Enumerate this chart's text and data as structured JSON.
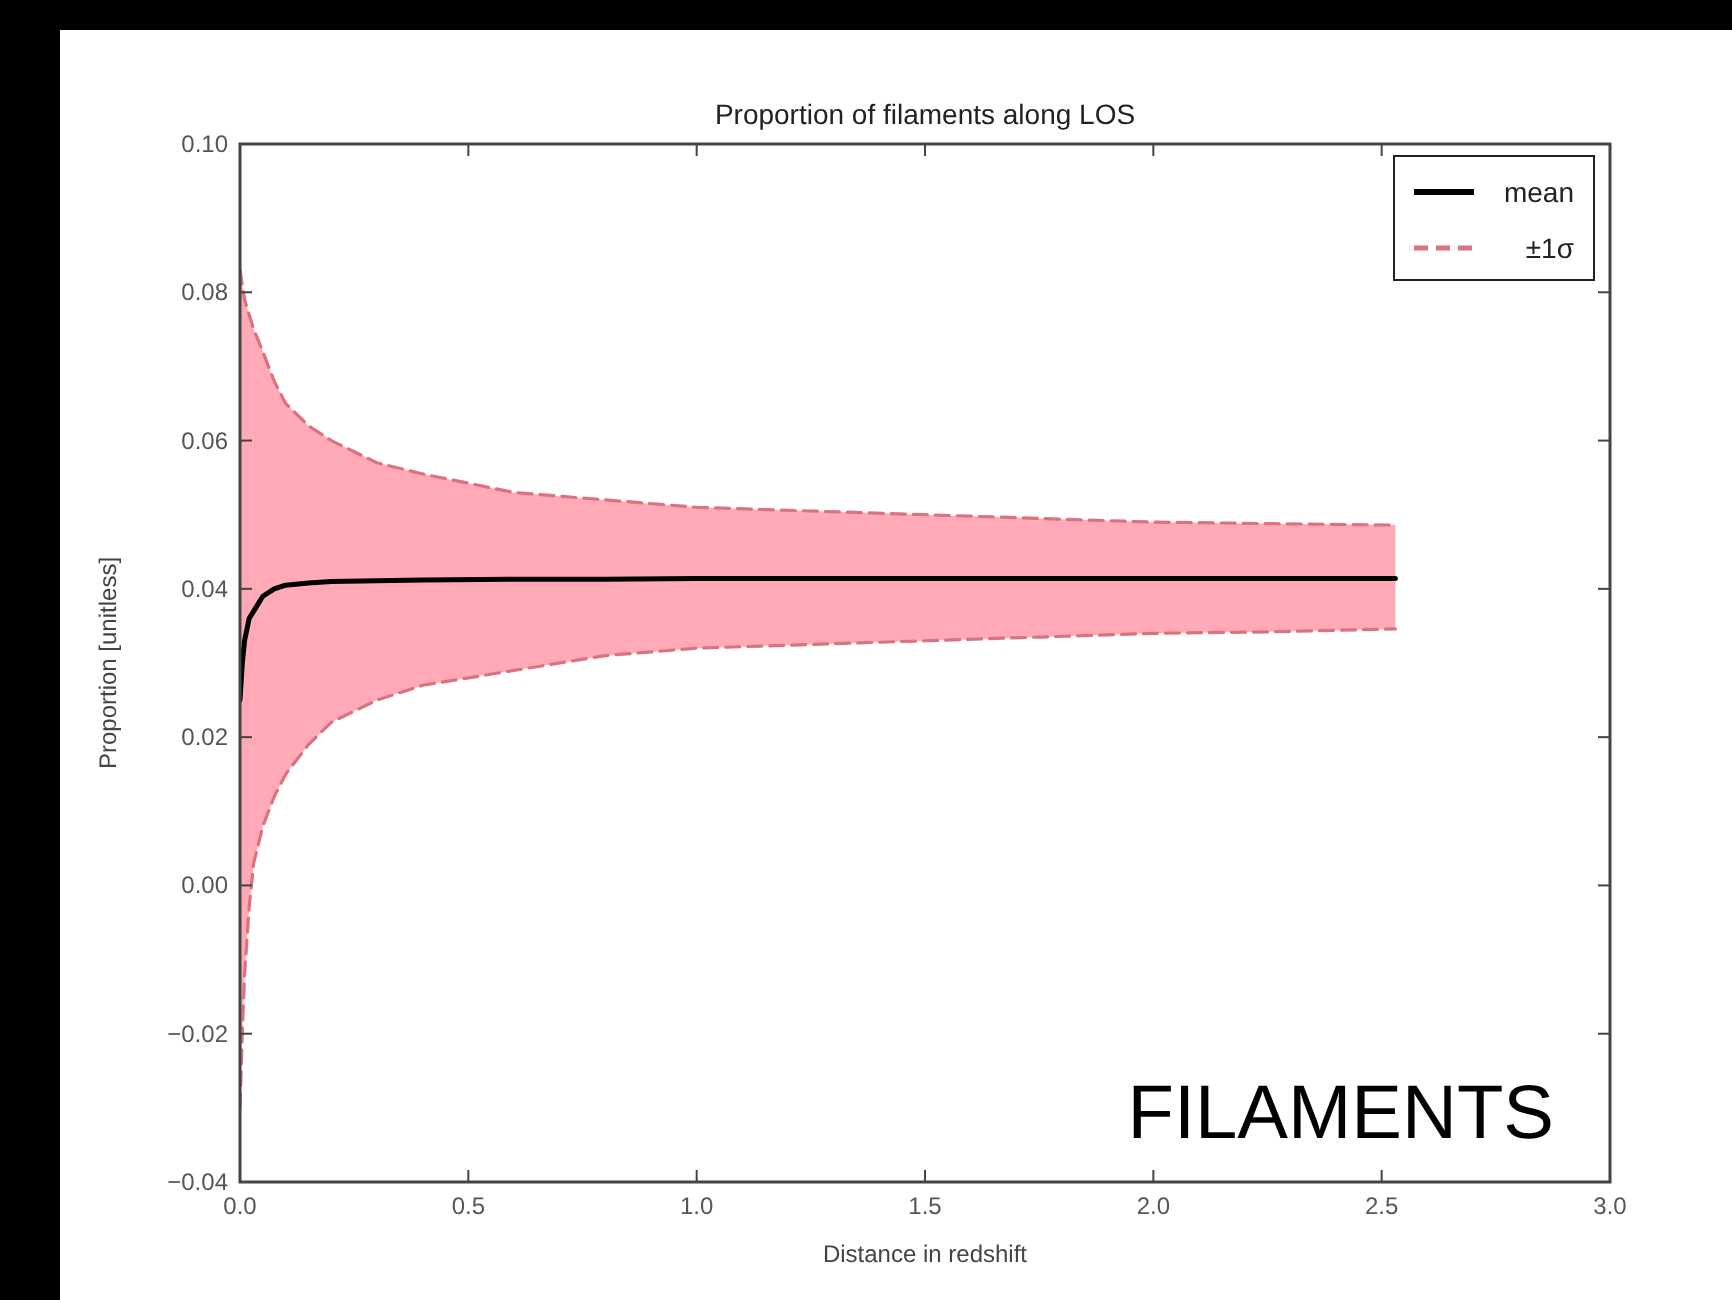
{
  "chart_data": {
    "type": "line",
    "title": "Proportion of filaments along LOS",
    "xlabel": "Distance in redshift",
    "ylabel": "Proportion [unitless]",
    "x": [
      0,
      0.005,
      0.01,
      0.02,
      0.03,
      0.05,
      0.075,
      0.1,
      0.15,
      0.2,
      0.3,
      0.4,
      0.6,
      0.8,
      1.0,
      1.25,
      1.5,
      1.75,
      2.0,
      2.25,
      2.53
    ],
    "series": [
      {
        "name": "mean",
        "color": "#000000",
        "values": [
          0.025,
          0.03,
          0.033,
          0.036,
          0.037,
          0.039,
          0.04,
          0.0405,
          0.0408,
          0.041,
          0.0411,
          0.0412,
          0.0413,
          0.0413,
          0.0414,
          0.0414,
          0.0414,
          0.0414,
          0.0414,
          0.0414,
          0.0414
        ],
        "lower": [
          -0.03,
          -0.02,
          -0.012,
          -0.003,
          0.003,
          0.008,
          0.012,
          0.015,
          0.019,
          0.022,
          0.025,
          0.027,
          0.029,
          0.031,
          0.032,
          0.0325,
          0.033,
          0.0335,
          0.034,
          0.0342,
          0.0346
        ],
        "upper": [
          0.083,
          0.081,
          0.079,
          0.077,
          0.075,
          0.072,
          0.068,
          0.065,
          0.062,
          0.06,
          0.057,
          0.0555,
          0.053,
          0.052,
          0.051,
          0.0505,
          0.05,
          0.0495,
          0.049,
          0.0488,
          0.0486
        ]
      },
      {
        "name": "±1σ",
        "color": "#d9737f",
        "line_style": "dashed",
        "values": [
          0.083,
          0.081,
          0.079,
          0.077,
          0.075,
          0.072,
          0.068,
          0.065,
          0.062,
          0.06,
          0.057,
          0.0555,
          0.053,
          0.052,
          0.051,
          0.0505,
          0.05,
          0.0495,
          0.049,
          0.0488,
          0.0486
        ]
      },
      {
        "color": "#d9737f",
        "line_style": "dashed",
        "values": [
          -0.03,
          -0.02,
          -0.012,
          -0.003,
          0.003,
          0.008,
          0.012,
          0.015,
          0.019,
          0.022,
          0.025,
          0.027,
          0.029,
          0.031,
          0.032,
          0.0325,
          0.033,
          0.0335,
          0.034,
          0.0342,
          0.0346
        ]
      }
    ],
    "xlim": [
      0,
      3
    ],
    "xticks": [
      {
        "value": 0,
        "label": "0.0"
      },
      {
        "value": 0.5,
        "label": "0.5"
      },
      {
        "value": 1,
        "label": "1.0"
      },
      {
        "value": 1.5,
        "label": "1.5"
      },
      {
        "value": 2,
        "label": "2.0"
      },
      {
        "value": 2.5,
        "label": "2.5"
      },
      {
        "value": 3,
        "label": "3.0"
      }
    ],
    "ylim": [
      -0.04,
      0.1
    ],
    "yticks": [
      {
        "value": -0.04,
        "label": "−0.04"
      },
      {
        "value": -0.02,
        "label": "−0.02"
      },
      {
        "value": 0,
        "label": "0.00"
      },
      {
        "value": 0.02,
        "label": "0.02"
      },
      {
        "value": 0.04,
        "label": "0.04"
      },
      {
        "value": 0.06,
        "label": "0.06"
      },
      {
        "value": 0.08,
        "label": "0.08"
      },
      {
        "value": 0.1,
        "label": "0.10"
      }
    ],
    "legend": "top right",
    "grid": false,
    "annotations": [
      "FILAMENTS"
    ]
  }
}
